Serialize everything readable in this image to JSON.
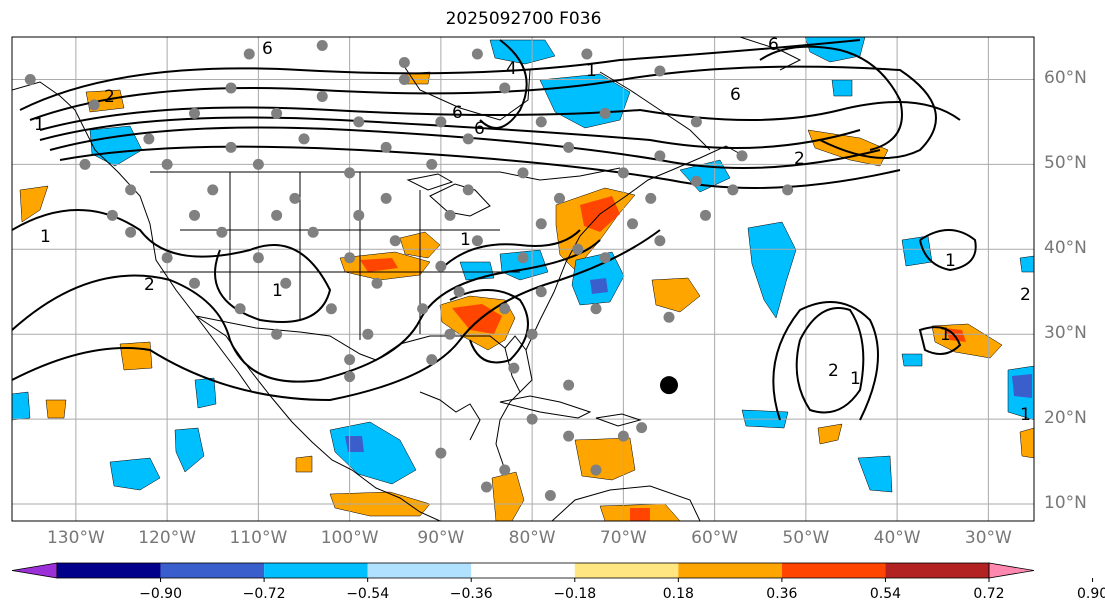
{
  "title": "2025092700 F036",
  "lat_labels": [
    "60°N",
    "50°N",
    "40°N",
    "30°N",
    "20°N",
    "10°N"
  ],
  "lat_values": [
    60,
    50,
    40,
    30,
    20,
    10
  ],
  "lon_labels": [
    "130°W",
    "120°W",
    "110°W",
    "100°W",
    "90°W",
    "80°W",
    "70°W",
    "60°W",
    "50°W",
    "40°W",
    "30°W"
  ],
  "lon_values": [
    -130,
    -120,
    -110,
    -100,
    -90,
    -80,
    -70,
    -60,
    -50,
    -40,
    -30
  ],
  "extent": {
    "lon_min": -137,
    "lon_max": -25,
    "lat_min": 8,
    "lat_max": 65
  },
  "colorbar": {
    "tick_labels": [
      "−0.90",
      "−0.72",
      "−0.54",
      "−0.36",
      "−0.18",
      "0.18",
      "0.36",
      "0.54",
      "0.72",
      "0.90"
    ],
    "colors": [
      "#9b30d9",
      "#00008b",
      "#3a5fcd",
      "#00bfff",
      "#b0e2ff",
      "#ffffff",
      "#ffe680",
      "#ffa500",
      "#ff4500",
      "#b22222",
      "#ff88b0"
    ]
  },
  "contour_labels": [
    "6",
    "6",
    "6",
    "6",
    "6",
    "2",
    "4",
    "2",
    "1",
    "1",
    "1",
    "1",
    "2",
    "2",
    "1",
    "1",
    "2",
    "1",
    "1",
    "1"
  ],
  "storm_marker": {
    "lon": -65,
    "lat": 24
  },
  "map_colors": {
    "coast": "#000000",
    "station": "#808080",
    "grid": "#aaaaaa"
  }
}
